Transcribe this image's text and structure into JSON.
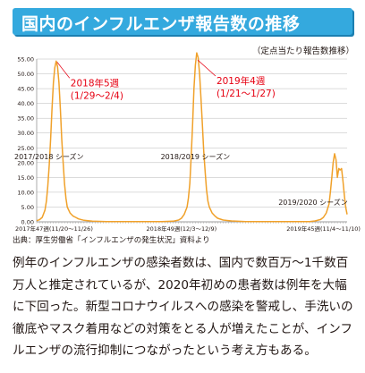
{
  "header": {
    "title": "国内のインフルエンザ報告数の推移"
  },
  "chart_data": {
    "type": "line",
    "unit_note": "（定点当たり報告数推移）",
    "ylim": [
      0,
      55
    ],
    "y_ticks": [
      0,
      5,
      10,
      15,
      20,
      25,
      30,
      35,
      40,
      45,
      50,
      55
    ],
    "y_tick_labels": [
      "0.00",
      "5.00",
      "10.00",
      "15.00",
      "20.00",
      "25.00",
      "30.00",
      "35.00",
      "40.00",
      "45.00",
      "50.00",
      "55.00"
    ],
    "x_tick_labels": [
      {
        "index": 0,
        "label": "2017年47週(11/20～11/26)"
      },
      {
        "index": 104,
        "label": "2018年49週(12/3～12/9)"
      },
      {
        "index": 206,
        "label": "2019年45週(11/4～11/10)"
      }
    ],
    "x_count": 224,
    "grid": true,
    "series": [
      {
        "color": "#f0a12a",
        "points": [
          [
            0,
            0.4
          ],
          [
            2,
            0.7
          ],
          [
            4,
            1.5
          ],
          [
            6,
            4
          ],
          [
            7,
            7
          ],
          [
            8,
            12
          ],
          [
            9,
            19
          ],
          [
            10,
            28
          ],
          [
            11,
            38
          ],
          [
            12,
            47
          ],
          [
            13,
            52
          ],
          [
            14,
            54.3
          ],
          [
            15,
            52.5
          ],
          [
            16,
            47
          ],
          [
            17,
            38
          ],
          [
            18,
            28
          ],
          [
            19,
            20
          ],
          [
            20,
            13
          ],
          [
            21,
            8
          ],
          [
            22,
            5
          ],
          [
            24,
            3
          ],
          [
            26,
            2
          ],
          [
            28,
            1.5
          ],
          [
            30,
            1
          ],
          [
            34,
            0.5
          ],
          [
            40,
            0.2
          ],
          [
            50,
            0.1
          ],
          [
            90,
            0.1
          ],
          [
            98,
            0.2
          ],
          [
            102,
            0.6
          ],
          [
            104,
            1.2
          ],
          [
            106,
            2.5
          ],
          [
            108,
            5
          ],
          [
            109,
            8
          ],
          [
            110,
            13
          ],
          [
            111,
            22
          ],
          [
            112,
            33
          ],
          [
            113,
            45
          ],
          [
            114,
            53
          ],
          [
            115,
            57.1
          ],
          [
            116,
            55.5
          ],
          [
            117,
            50
          ],
          [
            118,
            42
          ],
          [
            119,
            33
          ],
          [
            120,
            24
          ],
          [
            121,
            17
          ],
          [
            122,
            11
          ],
          [
            123,
            7
          ],
          [
            124,
            5
          ],
          [
            126,
            3
          ],
          [
            128,
            2
          ],
          [
            130,
            1.2
          ],
          [
            134,
            0.6
          ],
          [
            140,
            0.3
          ],
          [
            150,
            0.1
          ],
          [
            196,
            0.1
          ],
          [
            200,
            0.3
          ],
          [
            204,
            0.8
          ],
          [
            206,
            1.5
          ],
          [
            208,
            3
          ],
          [
            210,
            6
          ],
          [
            211,
            10
          ],
          [
            212,
            15
          ],
          [
            213,
            20
          ],
          [
            214,
            23
          ],
          [
            215,
            21
          ],
          [
            216,
            15
          ],
          [
            217,
            18
          ],
          [
            218,
            17.5
          ],
          [
            219,
            18
          ],
          [
            220,
            14
          ],
          [
            221,
            9
          ],
          [
            222,
            5
          ],
          [
            223,
            2.5
          ]
        ]
      }
    ],
    "annotations": [
      {
        "id": "peak1",
        "line1": "2018年5週",
        "line2": "(1/29～2/4)",
        "peak_x": 14,
        "peak_y": 54.3
      },
      {
        "id": "peak2",
        "line1": "2019年4週",
        "line2": "(1/21～1/27)",
        "peak_x": 115,
        "peak_y": 57.1
      }
    ],
    "season_labels": [
      {
        "text": "2017/2018 シーズン",
        "x": 14
      },
      {
        "text": "2018/2019 シーズン",
        "x": 114
      },
      {
        "text": "2019/2020 シーズン",
        "x": 214
      }
    ]
  },
  "source": "出典：厚生労働省「インフルエンザの発生状況」資料より",
  "body_text": "例年のインフルエンザの感染者数は、国内で数百万～1千数百万人と推定されているが、2020年初めの患者数は例年を大幅に下回った。新型コロナウイルスへの感染を警戒し、手洗いの徹底やマスク着用などの対策をとる人が増えたことが、インフルエンザの流行抑制につながったという考え方もある。"
}
